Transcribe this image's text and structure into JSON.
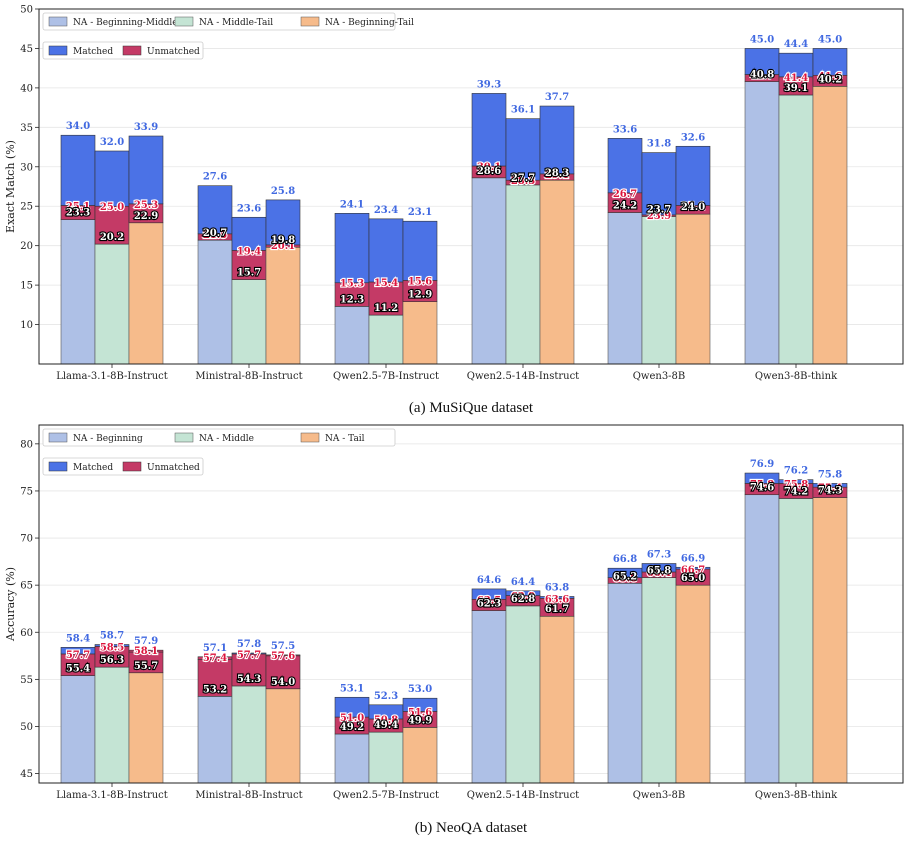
{
  "colors": {
    "base": [
      "#aec0e6",
      "#c4e4d4",
      "#f6bb8b"
    ],
    "matched": "#4b72e6",
    "unmatched": "#c43a66",
    "label_top": "#4169e1",
    "label_red": "#dc143c"
  },
  "chart_data": [
    {
      "type": "bar",
      "caption": "(a) MuSiQue dataset",
      "ylabel": "Exact Match (%)",
      "ylim": [
        5,
        50
      ],
      "yticks": [
        10,
        15,
        20,
        25,
        30,
        35,
        40,
        45,
        50
      ],
      "grid": true,
      "categories": [
        "Llama-3.1-8B-Instruct",
        "Ministral-8B-Instruct",
        "Qwen2.5-7B-Instruct",
        "Qwen2.5-14B-Instruct",
        "Qwen3-8B",
        "Qwen3-8B-think"
      ],
      "legend_placement": "top-left",
      "legend_series": [
        "NA - Beginning-Middle",
        "NA - Middle-Tail",
        "NA - Beginning-Tail"
      ],
      "legend_stack": [
        "Matched",
        "Unmatched"
      ],
      "series": [
        {
          "name": "NA - Beginning-Middle",
          "base": [
            23.3,
            20.7,
            12.3,
            28.6,
            24.2,
            40.8
          ],
          "unmatched": [
            25.1,
            21.5,
            15.3,
            30.1,
            26.7,
            41.7
          ],
          "total": [
            34.0,
            27.6,
            24.1,
            39.3,
            33.6,
            45.0
          ]
        },
        {
          "name": "NA - Middle-Tail",
          "base": [
            20.2,
            15.7,
            11.2,
            27.7,
            23.7,
            39.1
          ],
          "unmatched": [
            25.0,
            19.4,
            15.4,
            28.3,
            23.9,
            41.4
          ],
          "total": [
            32.0,
            23.6,
            23.4,
            36.1,
            31.8,
            44.4
          ]
        },
        {
          "name": "NA - Beginning-Tail",
          "base": [
            22.9,
            19.8,
            12.9,
            28.3,
            24.0,
            40.2
          ],
          "unmatched": [
            25.3,
            20.1,
            15.6,
            29.1,
            25.1,
            41.6
          ],
          "total": [
            33.9,
            25.8,
            23.1,
            37.7,
            32.6,
            45.0
          ]
        }
      ]
    },
    {
      "type": "bar",
      "caption": "(b) NeoQA dataset",
      "ylabel": "Accuracy (%)",
      "ylim": [
        44,
        82
      ],
      "yticks": [
        45,
        50,
        55,
        60,
        65,
        70,
        75,
        80
      ],
      "grid": true,
      "categories": [
        "Llama-3.1-8B-Instruct",
        "Ministral-8B-Instruct",
        "Qwen2.5-7B-Instruct",
        "Qwen2.5-14B-Instruct",
        "Qwen3-8B",
        "Qwen3-8B-think"
      ],
      "legend_placement": "top-left",
      "legend_series": [
        "NA - Beginning",
        "NA - Middle",
        "NA - Tail"
      ],
      "legend_stack": [
        "Matched",
        "Unmatched"
      ],
      "series": [
        {
          "name": "NA - Beginning",
          "base": [
            55.4,
            53.2,
            49.2,
            62.3,
            65.2,
            74.6
          ],
          "unmatched": [
            57.7,
            57.4,
            51.0,
            63.5,
            65.8,
            75.8
          ],
          "total": [
            58.4,
            57.1,
            53.1,
            64.6,
            66.8,
            76.9
          ]
        },
        {
          "name": "NA - Middle",
          "base": [
            56.3,
            54.3,
            49.4,
            62.8,
            65.8,
            74.2
          ],
          "unmatched": [
            58.5,
            57.7,
            50.8,
            63.9,
            66.4,
            75.8
          ],
          "total": [
            58.7,
            57.8,
            52.3,
            64.4,
            67.3,
            76.2
          ]
        },
        {
          "name": "NA - Tail",
          "base": [
            55.7,
            54.0,
            49.9,
            61.7,
            65.0,
            74.3
          ],
          "unmatched": [
            58.1,
            57.6,
            51.6,
            63.6,
            66.7,
            75.4
          ],
          "total": [
            57.9,
            57.5,
            53.0,
            63.8,
            66.9,
            75.8
          ]
        }
      ]
    }
  ]
}
